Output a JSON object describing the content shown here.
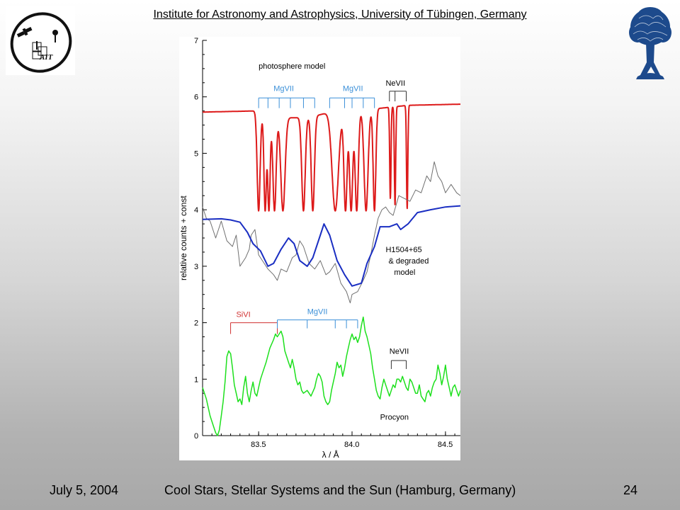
{
  "header": {
    "title": "Institute for Astronomy and Astrophysics, University of Tübingen, Germany",
    "logo_left_text": "AIT"
  },
  "footer": {
    "date": "July 5, 2004",
    "conference": "Cool Stars, Stellar Systems and the Sun (Hamburg, Germany)",
    "page": "24"
  },
  "colors": {
    "model_red": "#dd1a1a",
    "degraded_blue": "#1a2ec2",
    "observed_grey": "#707070",
    "procyon_green": "#1de01d",
    "mgvii_label": "#3a8fd8",
    "sivi_label": "#d03030",
    "tree_blue": "#1d4a8c"
  },
  "chart_data": {
    "type": "line",
    "xlabel": "λ / Å",
    "ylabel": "relative counts + const",
    "xlim": [
      83.2,
      84.58
    ],
    "ylim": [
      0,
      7
    ],
    "xticks": [
      "83.5",
      "84.0",
      "84.5"
    ],
    "yticks": [
      "0",
      "1",
      "2",
      "3",
      "4",
      "5",
      "6",
      "7"
    ],
    "annotations": {
      "photosphere": "photosphere model",
      "h1504": [
        "H1504+65",
        "& degraded",
        "model"
      ],
      "procyon": "Procyon",
      "mg_top_left": "MgVII",
      "mg_top_right": "MgVII",
      "ne_top": "NeVII",
      "si_bottom": "SiVI",
      "mg_bottom": "MgVII",
      "ne_bottom": "NeVII"
    },
    "line_ids": {
      "mg_top_left_lines": [
        83.5,
        83.55,
        83.61,
        83.67,
        83.74,
        83.8
      ],
      "mg_top_right_lines": [
        83.88,
        83.96,
        84.0,
        84.06,
        84.12
      ],
      "ne_top_lines": [
        84.2,
        84.23,
        84.29
      ],
      "si_bottom_lines": [
        83.35,
        83.6
      ],
      "mg_bottom_lines": [
        83.6,
        83.76,
        83.91,
        83.97,
        84.03
      ],
      "ne_bottom_lines": [
        84.21,
        84.29
      ]
    },
    "series": [
      {
        "key": "photosphere_model",
        "line_width": 2,
        "baseline": 5.75,
        "continuum": [
          [
            83.2,
            5.73
          ],
          [
            83.48,
            5.75
          ],
          [
            83.55,
            5.62
          ],
          [
            83.62,
            5.63
          ],
          [
            83.7,
            5.63
          ],
          [
            83.79,
            5.65
          ],
          [
            83.87,
            5.72
          ],
          [
            84.0,
            5.75
          ],
          [
            84.1,
            5.78
          ],
          [
            84.3,
            5.85
          ],
          [
            84.58,
            5.87
          ]
        ],
        "dips": [
          {
            "x": 83.5,
            "depth": 3.98,
            "w": 0.011
          },
          {
            "x": 83.535,
            "depth": 3.98,
            "w": 0.009
          },
          {
            "x": 83.555,
            "depth": 3.98,
            "w": 0.009
          },
          {
            "x": 83.585,
            "depth": 3.98,
            "w": 0.012
          },
          {
            "x": 83.63,
            "depth": 3.98,
            "w": 0.016
          },
          {
            "x": 83.74,
            "depth": 3.98,
            "w": 0.013
          },
          {
            "x": 83.79,
            "depth": 3.98,
            "w": 0.012
          },
          {
            "x": 83.91,
            "depth": 3.98,
            "w": 0.024
          },
          {
            "x": 83.965,
            "depth": 3.98,
            "w": 0.012
          },
          {
            "x": 83.995,
            "depth": 3.98,
            "w": 0.012
          },
          {
            "x": 84.025,
            "depth": 3.98,
            "w": 0.012
          },
          {
            "x": 84.075,
            "depth": 3.98,
            "w": 0.015
          },
          {
            "x": 84.12,
            "depth": 3.98,
            "w": 0.01
          },
          {
            "x": 84.205,
            "depth": 4.2,
            "w": 0.005
          },
          {
            "x": 84.23,
            "depth": 4.08,
            "w": 0.005
          },
          {
            "x": 84.295,
            "depth": 4.02,
            "w": 0.005
          }
        ]
      },
      {
        "key": "degraded_model",
        "line_width": 2,
        "points": [
          [
            83.2,
            3.83
          ],
          [
            83.3,
            3.84
          ],
          [
            83.35,
            3.82
          ],
          [
            83.4,
            3.78
          ],
          [
            83.44,
            3.6
          ],
          [
            83.47,
            3.4
          ],
          [
            83.51,
            3.27
          ],
          [
            83.55,
            3.0
          ],
          [
            83.58,
            3.05
          ],
          [
            83.62,
            3.3
          ],
          [
            83.66,
            3.5
          ],
          [
            83.69,
            3.4
          ],
          [
            83.72,
            3.1
          ],
          [
            83.76,
            3.0
          ],
          [
            83.79,
            3.15
          ],
          [
            83.83,
            3.55
          ],
          [
            83.85,
            3.75
          ],
          [
            83.88,
            3.55
          ],
          [
            83.92,
            3.1
          ],
          [
            83.96,
            2.85
          ],
          [
            84.0,
            2.65
          ],
          [
            84.05,
            2.7
          ],
          [
            84.08,
            3.05
          ],
          [
            84.12,
            3.35
          ],
          [
            84.15,
            3.7
          ],
          [
            84.2,
            3.7
          ],
          [
            84.24,
            3.75
          ],
          [
            84.26,
            3.65
          ],
          [
            84.3,
            3.75
          ],
          [
            84.35,
            3.95
          ],
          [
            84.42,
            4.0
          ],
          [
            84.5,
            4.05
          ],
          [
            84.58,
            4.07
          ]
        ]
      },
      {
        "key": "observed_h1504",
        "line_width": 1,
        "points": [
          [
            83.2,
            4.05
          ],
          [
            83.22,
            3.85
          ],
          [
            83.24,
            3.8
          ],
          [
            83.27,
            3.5
          ],
          [
            83.3,
            3.8
          ],
          [
            83.33,
            3.45
          ],
          [
            83.36,
            3.35
          ],
          [
            83.38,
            3.55
          ],
          [
            83.4,
            3.0
          ],
          [
            83.43,
            3.15
          ],
          [
            83.45,
            3.3
          ],
          [
            83.46,
            3.55
          ],
          [
            83.48,
            3.65
          ],
          [
            83.5,
            3.2
          ],
          [
            83.52,
            3.1
          ],
          [
            83.55,
            2.95
          ],
          [
            83.58,
            2.85
          ],
          [
            83.6,
            2.75
          ],
          [
            83.62,
            2.95
          ],
          [
            83.65,
            2.9
          ],
          [
            83.68,
            3.15
          ],
          [
            83.7,
            3.2
          ],
          [
            83.72,
            3.45
          ],
          [
            83.74,
            3.35
          ],
          [
            83.77,
            3.05
          ],
          [
            83.8,
            2.95
          ],
          [
            83.83,
            3.1
          ],
          [
            83.86,
            2.85
          ],
          [
            83.88,
            2.9
          ],
          [
            83.91,
            3.05
          ],
          [
            83.94,
            2.7
          ],
          [
            83.97,
            2.55
          ],
          [
            83.99,
            2.35
          ],
          [
            84.0,
            2.5
          ],
          [
            84.03,
            2.55
          ],
          [
            84.06,
            2.75
          ],
          [
            84.08,
            2.9
          ],
          [
            84.1,
            3.2
          ],
          [
            84.12,
            3.55
          ],
          [
            84.14,
            3.85
          ],
          [
            84.16,
            4.0
          ],
          [
            84.18,
            4.05
          ],
          [
            84.2,
            3.95
          ],
          [
            84.22,
            3.9
          ],
          [
            84.25,
            4.25
          ],
          [
            84.28,
            4.2
          ],
          [
            84.31,
            4.15
          ],
          [
            84.34,
            4.35
          ],
          [
            84.37,
            4.3
          ],
          [
            84.4,
            4.6
          ],
          [
            84.42,
            4.5
          ],
          [
            84.44,
            4.85
          ],
          [
            84.46,
            4.6
          ],
          [
            84.48,
            4.5
          ],
          [
            84.5,
            4.3
          ],
          [
            84.53,
            4.45
          ],
          [
            84.56,
            4.3
          ],
          [
            84.58,
            4.25
          ]
        ]
      },
      {
        "key": "procyon",
        "line_width": 1.5,
        "points": [
          [
            83.2,
            0.85
          ],
          [
            83.22,
            0.65
          ],
          [
            83.24,
            0.35
          ],
          [
            83.26,
            0.15
          ],
          [
            83.27,
            0.05
          ],
          [
            83.28,
            0.0
          ],
          [
            83.29,
            0.1
          ],
          [
            83.3,
            0.35
          ],
          [
            83.31,
            0.6
          ],
          [
            83.32,
            0.95
          ],
          [
            83.33,
            1.4
          ],
          [
            83.34,
            1.5
          ],
          [
            83.35,
            1.45
          ],
          [
            83.36,
            1.2
          ],
          [
            83.37,
            0.9
          ],
          [
            83.38,
            0.75
          ],
          [
            83.39,
            0.6
          ],
          [
            83.4,
            0.65
          ],
          [
            83.41,
            0.55
          ],
          [
            83.42,
            0.85
          ],
          [
            83.43,
            1.05
          ],
          [
            83.44,
            0.75
          ],
          [
            83.45,
            0.6
          ],
          [
            83.46,
            0.8
          ],
          [
            83.47,
            0.95
          ],
          [
            83.48,
            0.75
          ],
          [
            83.49,
            0.7
          ],
          [
            83.5,
            0.85
          ],
          [
            83.51,
            1.0
          ],
          [
            83.52,
            1.1
          ],
          [
            83.54,
            1.3
          ],
          [
            83.56,
            1.55
          ],
          [
            83.58,
            1.7
          ],
          [
            83.59,
            1.8
          ],
          [
            83.6,
            1.75
          ],
          [
            83.61,
            1.8
          ],
          [
            83.62,
            1.85
          ],
          [
            83.63,
            1.75
          ],
          [
            83.64,
            1.5
          ],
          [
            83.66,
            1.3
          ],
          [
            83.67,
            1.2
          ],
          [
            83.68,
            1.35
          ],
          [
            83.69,
            1.2
          ],
          [
            83.7,
            1.0
          ],
          [
            83.71,
            0.9
          ],
          [
            83.72,
            0.95
          ],
          [
            83.73,
            0.8
          ],
          [
            83.74,
            0.75
          ],
          [
            83.76,
            0.8
          ],
          [
            83.78,
            0.7
          ],
          [
            83.8,
            0.85
          ],
          [
            83.81,
            1.0
          ],
          [
            83.82,
            1.1
          ],
          [
            83.83,
            1.05
          ],
          [
            83.84,
            0.95
          ],
          [
            83.85,
            0.7
          ],
          [
            83.86,
            0.6
          ],
          [
            83.87,
            0.55
          ],
          [
            83.88,
            0.6
          ],
          [
            83.89,
            0.8
          ],
          [
            83.9,
            0.95
          ],
          [
            83.91,
            1.1
          ],
          [
            83.92,
            1.3
          ],
          [
            83.93,
            1.2
          ],
          [
            83.94,
            1.25
          ],
          [
            83.95,
            1.05
          ],
          [
            83.96,
            1.2
          ],
          [
            83.97,
            1.4
          ],
          [
            83.98,
            1.55
          ],
          [
            83.99,
            1.7
          ],
          [
            84.0,
            1.8
          ],
          [
            84.01,
            1.7
          ],
          [
            84.02,
            1.75
          ],
          [
            84.03,
            1.65
          ],
          [
            84.04,
            1.75
          ],
          [
            84.05,
            1.95
          ],
          [
            84.06,
            2.1
          ],
          [
            84.07,
            1.85
          ],
          [
            84.08,
            1.75
          ],
          [
            84.09,
            1.6
          ],
          [
            84.1,
            1.45
          ],
          [
            84.11,
            1.2
          ],
          [
            84.12,
            1.0
          ],
          [
            84.13,
            0.8
          ],
          [
            84.14,
            0.7
          ],
          [
            84.15,
            0.65
          ],
          [
            84.16,
            0.85
          ],
          [
            84.17,
            1.0
          ],
          [
            84.18,
            0.9
          ],
          [
            84.19,
            0.8
          ],
          [
            84.2,
            0.7
          ],
          [
            84.21,
            0.8
          ],
          [
            84.22,
            0.9
          ],
          [
            84.23,
            0.85
          ],
          [
            84.24,
            1.0
          ],
          [
            84.25,
            1.0
          ],
          [
            84.26,
            0.95
          ],
          [
            84.27,
            1.05
          ],
          [
            84.28,
            0.95
          ],
          [
            84.29,
            0.85
          ],
          [
            84.3,
            0.8
          ],
          [
            84.31,
            1.0
          ],
          [
            84.32,
            0.95
          ],
          [
            84.33,
            0.85
          ],
          [
            84.34,
            0.75
          ],
          [
            84.35,
            0.75
          ],
          [
            84.36,
            0.9
          ],
          [
            84.37,
            0.7
          ],
          [
            84.38,
            0.65
          ],
          [
            84.39,
            0.6
          ],
          [
            84.4,
            0.75
          ],
          [
            84.41,
            0.8
          ],
          [
            84.42,
            0.7
          ],
          [
            84.43,
            0.85
          ],
          [
            84.44,
            0.95
          ],
          [
            84.45,
            1.0
          ],
          [
            84.46,
            1.25
          ],
          [
            84.47,
            1.1
          ],
          [
            84.48,
            0.9
          ],
          [
            84.49,
            1.05
          ],
          [
            84.5,
            1.25
          ],
          [
            84.51,
            1.0
          ],
          [
            84.52,
            0.85
          ],
          [
            84.53,
            0.7
          ],
          [
            84.54,
            0.85
          ],
          [
            84.55,
            0.9
          ],
          [
            84.56,
            0.8
          ],
          [
            84.57,
            0.7
          ],
          [
            84.58,
            0.8
          ]
        ]
      }
    ]
  }
}
